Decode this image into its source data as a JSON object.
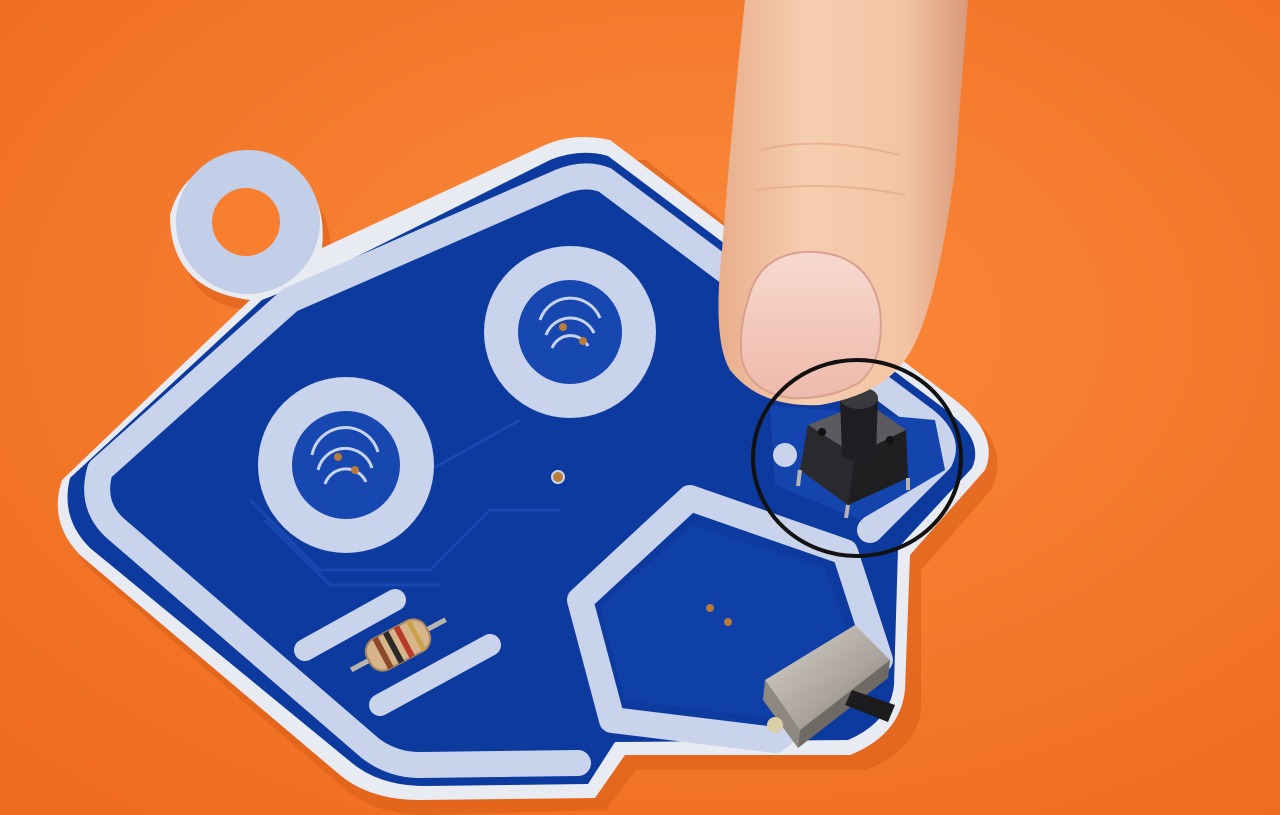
{
  "scene": {
    "subject": "pcb-touch-board",
    "colors": {
      "background": "#f97a2a",
      "background_shadow": "#e9661b",
      "board_blue": "#0d3a9e",
      "board_blue_dark": "#082c7e",
      "silkscreen": "#c9d4ec",
      "board_edge": "#e6e9f0",
      "pad_copper": "#b97a3a",
      "skin": "#f2c4a2",
      "skin_shadow": "#d99b7c",
      "nail": "#f5cfc4",
      "switch_black": "#1f1f22",
      "switch_metal": "#b9b4ae",
      "highlight_circle": "#111111"
    },
    "components": [
      {
        "name": "push-button",
        "highlighted": true
      },
      {
        "name": "slide-switch",
        "highlighted": false
      },
      {
        "name": "resistor",
        "highlighted": false
      },
      {
        "name": "touch-pad",
        "count": 2
      },
      {
        "name": "hexagon-pad",
        "count": 1
      }
    ]
  }
}
